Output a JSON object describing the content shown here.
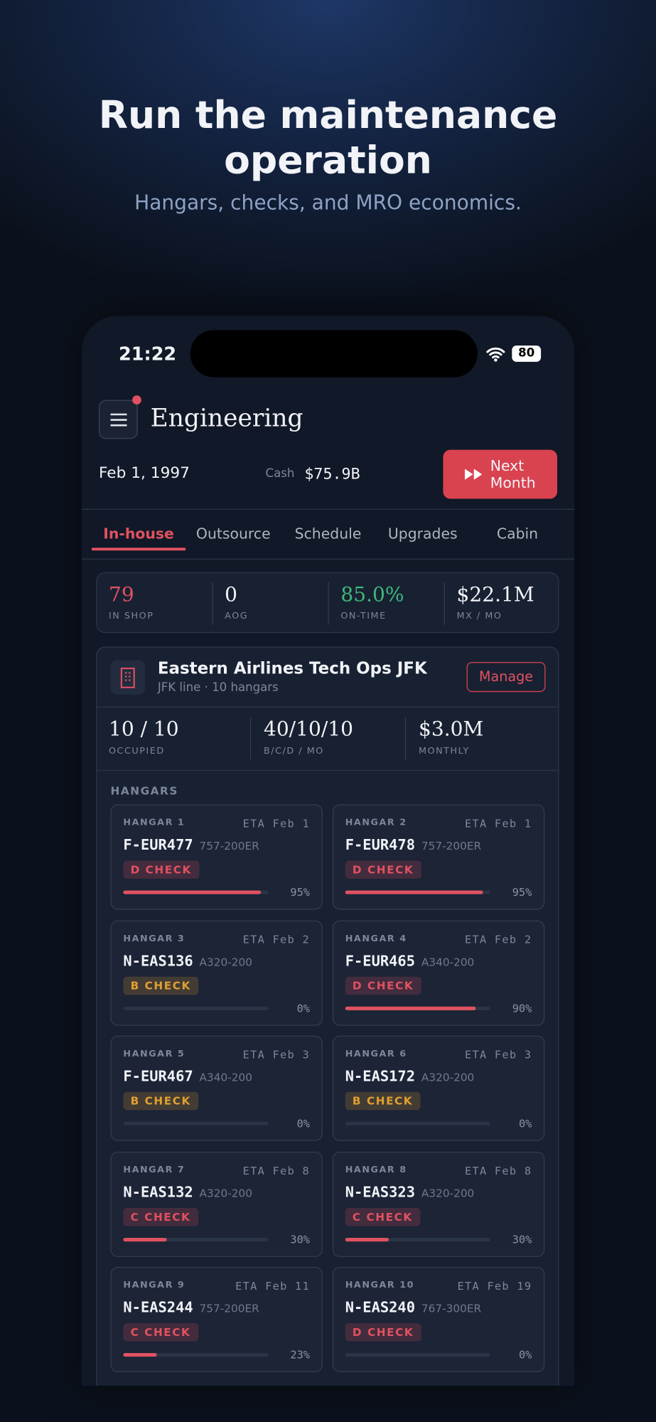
{
  "header": {
    "title": "Run the maintenance operation",
    "subtitle": "Hangars, checks, and MRO economics."
  },
  "status": {
    "time": "21:22",
    "battery": "80"
  },
  "app": {
    "title": "Engineering",
    "date": "Feb 1, 1997",
    "cash_label": "Cash",
    "cash": "$75.9B",
    "next_button": "Next Month",
    "tabs": [
      "In-house",
      "Outsource",
      "Schedule",
      "Upgrades",
      "Cabin"
    ],
    "active_tab": 0,
    "stats": [
      {
        "value": "79",
        "label": "IN SHOP",
        "color": "#e05260"
      },
      {
        "value": "0",
        "label": "AOG",
        "color": "#f1f3f7"
      },
      {
        "value": "85.0%",
        "label": "ON-TIME",
        "color": "#3fb77a"
      },
      {
        "value": "$22.1M",
        "label": "MX / MO",
        "color": "#f1f3f7"
      }
    ]
  },
  "facility": {
    "name": "Eastern Airlines Tech Ops JFK",
    "subtitle": "JFK line · 10 hangars",
    "button": "Manage",
    "stats": [
      {
        "value": "10 / 10",
        "label": "OCCUPIED"
      },
      {
        "value": "40/10/10",
        "label": "B/C/D / MO"
      },
      {
        "value": "$3.0M",
        "label": "MONTHLY"
      }
    ],
    "hangars_heading": "HANGARS",
    "hangars": [
      {
        "name": "HANGAR 1",
        "eta": "ETA Feb 1",
        "tail": "F-EUR477",
        "type": "757-200ER",
        "check": "D CHECK",
        "check_color": "#e05260",
        "progress": 95,
        "progress_label": "95%"
      },
      {
        "name": "HANGAR 2",
        "eta": "ETA Feb 1",
        "tail": "F-EUR478",
        "type": "757-200ER",
        "check": "D CHECK",
        "check_color": "#e05260",
        "progress": 95,
        "progress_label": "95%"
      },
      {
        "name": "HANGAR 3",
        "eta": "ETA Feb 2",
        "tail": "N-EAS136",
        "type": "A320-200",
        "check": "B CHECK",
        "check_color": "#e0a030",
        "progress": 0,
        "progress_label": "0%"
      },
      {
        "name": "HANGAR 4",
        "eta": "ETA Feb 2",
        "tail": "F-EUR465",
        "type": "A340-200",
        "check": "D CHECK",
        "check_color": "#e05260",
        "progress": 90,
        "progress_label": "90%"
      },
      {
        "name": "HANGAR 5",
        "eta": "ETA Feb 3",
        "tail": "F-EUR467",
        "type": "A340-200",
        "check": "B CHECK",
        "check_color": "#e0a030",
        "progress": 0,
        "progress_label": "0%"
      },
      {
        "name": "HANGAR 6",
        "eta": "ETA Feb 3",
        "tail": "N-EAS172",
        "type": "A320-200",
        "check": "B CHECK",
        "check_color": "#e0a030",
        "progress": 0,
        "progress_label": "0%"
      },
      {
        "name": "HANGAR 7",
        "eta": "ETA Feb 8",
        "tail": "N-EAS132",
        "type": "A320-200",
        "check": "C CHECK",
        "check_color": "#e05260",
        "progress": 30,
        "progress_label": "30%"
      },
      {
        "name": "HANGAR 8",
        "eta": "ETA Feb 8",
        "tail": "N-EAS323",
        "type": "A320-200",
        "check": "C CHECK",
        "check_color": "#e05260",
        "progress": 30,
        "progress_label": "30%"
      },
      {
        "name": "HANGAR 9",
        "eta": "ETA Feb 11",
        "tail": "N-EAS244",
        "type": "757-200ER",
        "check": "C CHECK",
        "check_color": "#e05260",
        "progress": 23,
        "progress_label": "23%"
      },
      {
        "name": "HANGAR 10",
        "eta": "ETA Feb 19",
        "tail": "N-EAS240",
        "type": "767-300ER",
        "check": "D CHECK",
        "check_color": "#e05260",
        "progress": 0,
        "progress_label": "0%"
      }
    ]
  }
}
